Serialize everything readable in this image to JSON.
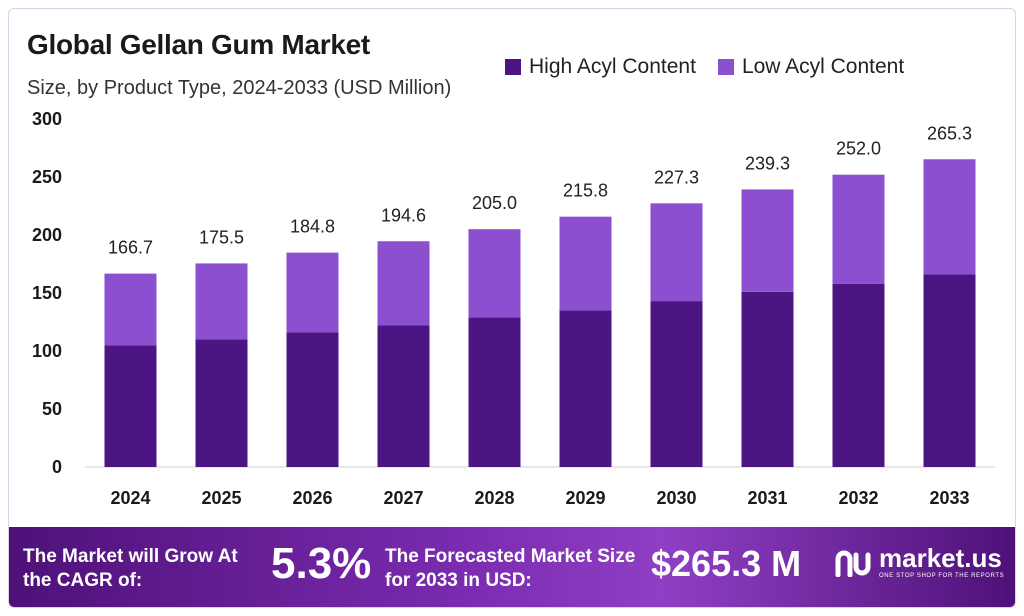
{
  "header": {
    "title": "Global Gellan Gum Market",
    "subtitle": "Size, by Product Type, 2024-2033 (USD Million)"
  },
  "legend": {
    "items": [
      {
        "label": "High Acyl Content",
        "color": "#4b1583"
      },
      {
        "label": "Low Acyl Content",
        "color": "#8b4fd0"
      }
    ]
  },
  "chart_data": {
    "type": "bar",
    "stacked": true,
    "categories": [
      "2024",
      "2025",
      "2026",
      "2027",
      "2028",
      "2029",
      "2030",
      "2031",
      "2032",
      "2033"
    ],
    "series": [
      {
        "name": "High Acyl Content",
        "color": "#4b1583",
        "values": [
          105,
          110,
          116,
          122,
          129,
          135,
          143,
          151,
          158,
          166
        ]
      },
      {
        "name": "Low Acyl Content",
        "color": "#8b4fd0",
        "values": [
          61.7,
          65.5,
          68.8,
          72.6,
          76.0,
          80.8,
          84.3,
          88.3,
          94.0,
          99.3
        ]
      }
    ],
    "totals": [
      "166.7",
      "175.5",
      "184.8",
      "194.6",
      "205.0",
      "215.8",
      "227.3",
      "239.3",
      "252.0",
      "265.3"
    ],
    "yticks": [
      0,
      50,
      100,
      150,
      200,
      250,
      300
    ],
    "ylim": [
      0,
      300
    ],
    "grid": false
  },
  "footer": {
    "cagr_label": "The Market will Grow At the CAGR of:",
    "cagr_value": "5.3%",
    "forecast_label": "The Forecasted Market Size for 2033 in USD:",
    "forecast_value": "$265.3 M",
    "brand": "market.us",
    "tagline": "ONE STOP SHOP FOR THE REPORTS"
  }
}
